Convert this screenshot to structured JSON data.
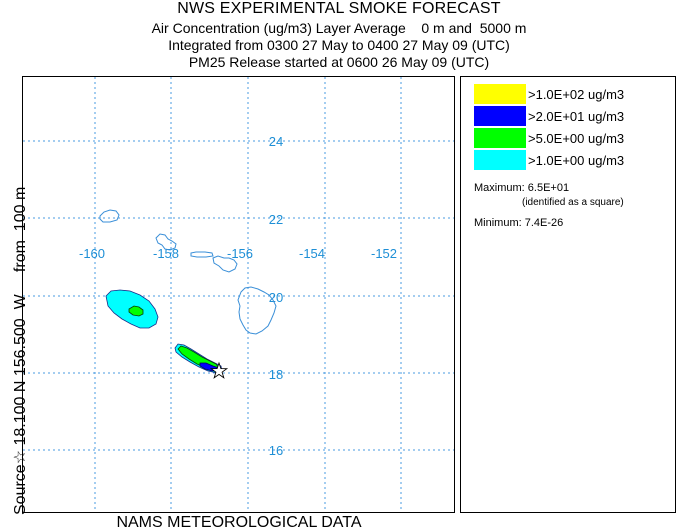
{
  "header": {
    "title": "NWS EXPERIMENTAL SMOKE FORECAST",
    "line1": "Air Concentration (ug/m3) Layer Average    0 m and  5000 m",
    "line2": "Integrated from 0300 27 May to 0400 27 May 09 (UTC)",
    "line3": "PM25 Release started at 0600 26 May 09 (UTC)"
  },
  "side_label": "Source☆ 18.100 N 156.500  W     from  100 m",
  "footer": "NAMS METEOROLOGICAL DATA",
  "map": {
    "lon_labels": [
      "-160",
      "-158",
      "-156",
      "-154",
      "-152"
    ],
    "lat_labels": [
      "24",
      "22",
      "20",
      "18",
      "16"
    ],
    "source_marker": "star",
    "grid": "dotted"
  },
  "legend": {
    "items": [
      {
        "label": ">1.0E+02 ug/m3",
        "color": "#ffff00"
      },
      {
        "label": ">2.0E+01 ug/m3",
        "color": "#0000ff"
      },
      {
        "label": ">5.0E+00 ug/m3",
        "color": "#00ff00"
      },
      {
        "label": ">1.0E+00 ug/m3",
        "color": "#00ffff"
      }
    ]
  },
  "stats": {
    "maximum": "Maximum: 6.5E+01",
    "max_note": "(identified as a square)",
    "minimum": "Minimum: 7.4E-26"
  },
  "colors": {
    "grid": "#1e88e5",
    "coast": "#1e88e5",
    "label": "#1e8fd6"
  }
}
